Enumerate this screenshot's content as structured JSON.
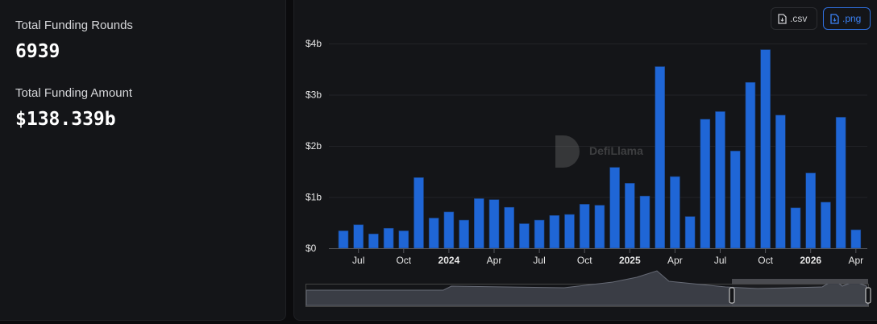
{
  "summary": {
    "rounds_label": "Total Funding Rounds",
    "rounds_value": "6939",
    "amount_label": "Total Funding Amount",
    "amount_value": "$138.339b"
  },
  "toolbar": {
    "csv_label": ".csv",
    "png_label": ".png",
    "csv_icon": "file-download-icon",
    "png_icon": "file-image-icon"
  },
  "watermark": "DefiLlama",
  "colors": {
    "bar": "#1f66d6",
    "accent": "#2f6fdc"
  },
  "chart_data": {
    "type": "bar",
    "title": "",
    "xlabel": "",
    "ylabel": "",
    "ylim": [
      0,
      4
    ],
    "unit": "billion USD",
    "grid": true,
    "categories": [
      "2023-06",
      "2023-07",
      "2023-08",
      "2023-09",
      "2023-10",
      "2023-11",
      "2023-12",
      "2024-01",
      "2024-02",
      "2024-03",
      "2024-04",
      "2024-05",
      "2024-06",
      "2024-07",
      "2024-08",
      "2024-09",
      "2024-10",
      "2024-11",
      "2024-12",
      "2025-01",
      "2025-02",
      "2025-03",
      "2025-04",
      "2025-05",
      "2025-06",
      "2025-07",
      "2025-08",
      "2025-09",
      "2025-10",
      "2025-11",
      "2025-12",
      "2026-01",
      "2026-02",
      "2026-03",
      "2026-04"
    ],
    "values": [
      0.34,
      0.46,
      0.28,
      0.39,
      0.34,
      1.38,
      0.59,
      0.71,
      0.55,
      0.97,
      0.95,
      0.8,
      0.48,
      0.55,
      0.64,
      0.66,
      0.86,
      0.84,
      1.58,
      1.27,
      1.02,
      3.55,
      1.4,
      0.62,
      2.52,
      2.67,
      1.9,
      3.24,
      3.88,
      2.6,
      0.79,
      1.47,
      0.9,
      2.56,
      0.36
    ],
    "y_ticks": [
      {
        "v": 0,
        "label": "$0"
      },
      {
        "v": 1,
        "label": "$1b"
      },
      {
        "v": 2,
        "label": "$2b"
      },
      {
        "v": 3,
        "label": "$3b"
      },
      {
        "v": 4,
        "label": "$4b"
      }
    ],
    "x_ticks": [
      {
        "cat": "2023-07",
        "label": "Jul",
        "bold": false
      },
      {
        "cat": "2023-10",
        "label": "Oct",
        "bold": false
      },
      {
        "cat": "2024-01",
        "label": "2024",
        "bold": true
      },
      {
        "cat": "2024-04",
        "label": "Apr",
        "bold": false
      },
      {
        "cat": "2024-07",
        "label": "Jul",
        "bold": false
      },
      {
        "cat": "2024-10",
        "label": "Oct",
        "bold": false
      },
      {
        "cat": "2025-01",
        "label": "2025",
        "bold": true
      },
      {
        "cat": "2025-04",
        "label": "Apr",
        "bold": false
      },
      {
        "cat": "2025-07",
        "label": "Jul",
        "bold": false
      },
      {
        "cat": "2025-10",
        "label": "Oct",
        "bold": false
      },
      {
        "cat": "2026-01",
        "label": "2026",
        "bold": true
      },
      {
        "cat": "2026-04",
        "label": "Apr",
        "bold": false
      }
    ]
  }
}
